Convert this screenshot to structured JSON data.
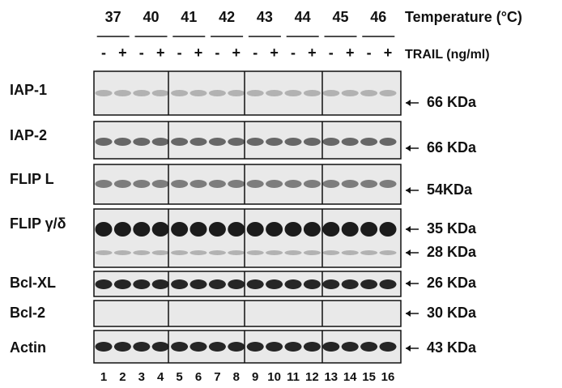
{
  "header": {
    "temperatures": [
      "37",
      "40",
      "41",
      "42",
      "43",
      "44",
      "45",
      "46"
    ],
    "temperature_label": "Temperature (°C)",
    "treatments": [
      "-",
      "+",
      "-",
      "+",
      "-",
      "+",
      "-",
      "+",
      "-",
      "+",
      "-",
      "+",
      "-",
      "+",
      "-",
      "+"
    ],
    "treatment_label": "TRAIL (ng/ml)"
  },
  "rows": [
    {
      "label": "IAP-1",
      "sizes": [
        "66 KDa"
      ]
    },
    {
      "label": "IAP-2",
      "sizes": [
        "66 KDa"
      ]
    },
    {
      "label": "FLIP L",
      "sizes": [
        "54KDa"
      ]
    },
    {
      "label": "FLIP γ/δ",
      "sizes": [
        "35 KDa",
        "28 KDa"
      ]
    },
    {
      "label": "Bcl-XL",
      "sizes": [
        "26 KDa"
      ]
    },
    {
      "label": "Bcl-2",
      "sizes": [
        "30 KDa"
      ]
    },
    {
      "label": "Actin",
      "sizes": [
        "43 KDa"
      ]
    }
  ],
  "lanes": [
    "1",
    "2",
    "3",
    "4",
    "5",
    "6",
    "7",
    "8",
    "9",
    "10",
    "11",
    "12",
    "13",
    "14",
    "15",
    "16"
  ]
}
